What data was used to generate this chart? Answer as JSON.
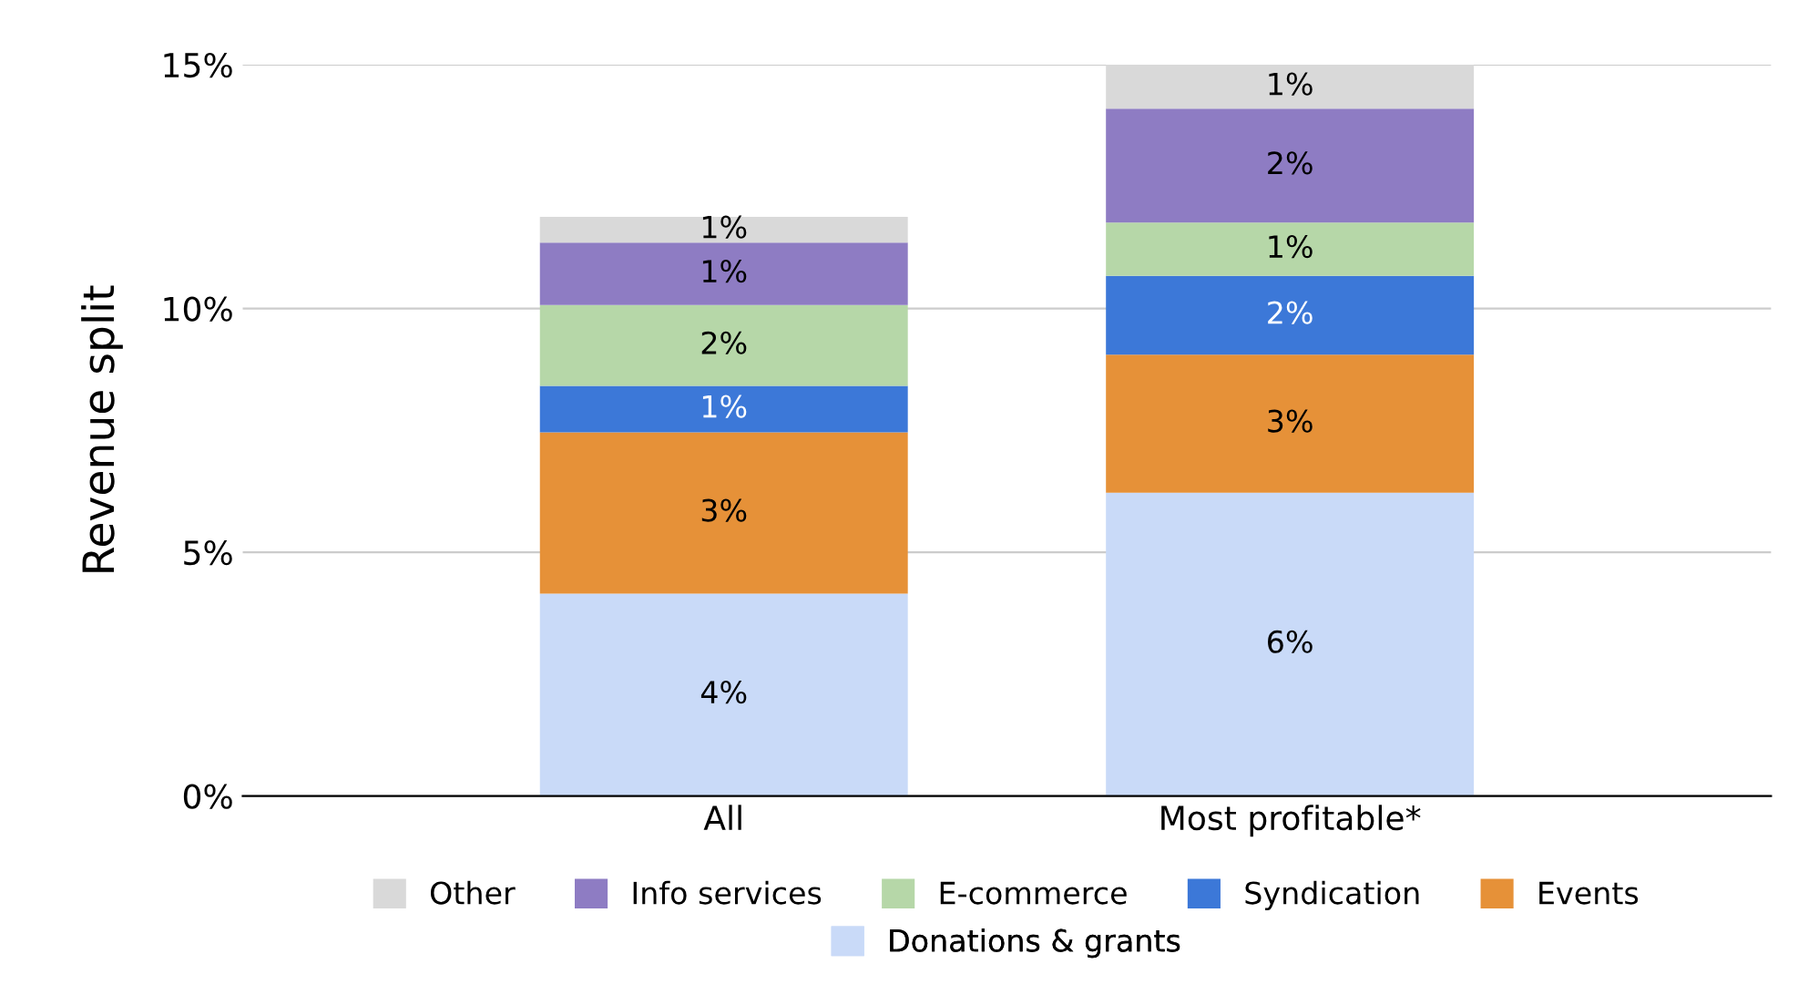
{
  "chart_data": {
    "type": "bar",
    "stacked": true,
    "ylabel": "Revenue split",
    "categories": [
      "All",
      "Most profitable*"
    ],
    "series": [
      {
        "name": "Donations & grants",
        "color": "#c9daf8",
        "values": [
          4.15,
          6.22
        ],
        "value_labels": [
          "4%",
          "6%"
        ]
      },
      {
        "name": "Events",
        "color": "#e69138",
        "values": [
          3.31,
          2.83
        ],
        "value_labels": [
          "3%",
          "3%"
        ]
      },
      {
        "name": "Syndication",
        "color": "#3c78d8",
        "values": [
          0.95,
          1.62
        ],
        "value_labels": [
          "1%",
          "2%"
        ]
      },
      {
        "name": "E-commerce",
        "color": "#b6d7a8",
        "values": [
          1.66,
          1.09
        ],
        "value_labels": [
          "2%",
          "1%"
        ]
      },
      {
        "name": "Info services",
        "color": "#8e7cc3",
        "values": [
          1.28,
          2.34
        ],
        "value_labels": [
          "1%",
          "2%"
        ]
      },
      {
        "name": "Other",
        "color": "#d9d9d9",
        "values": [
          0.53,
          0.9
        ],
        "value_labels": [
          "1%",
          "1%"
        ]
      }
    ],
    "ylim": [
      0,
      15
    ],
    "yticks": [
      {
        "value": 0,
        "label": "0%"
      },
      {
        "value": 5,
        "label": "5%"
      },
      {
        "value": 10,
        "label": "10%"
      },
      {
        "value": 15,
        "label": "15%"
      }
    ],
    "grid": "y",
    "legend": "bottom"
  }
}
